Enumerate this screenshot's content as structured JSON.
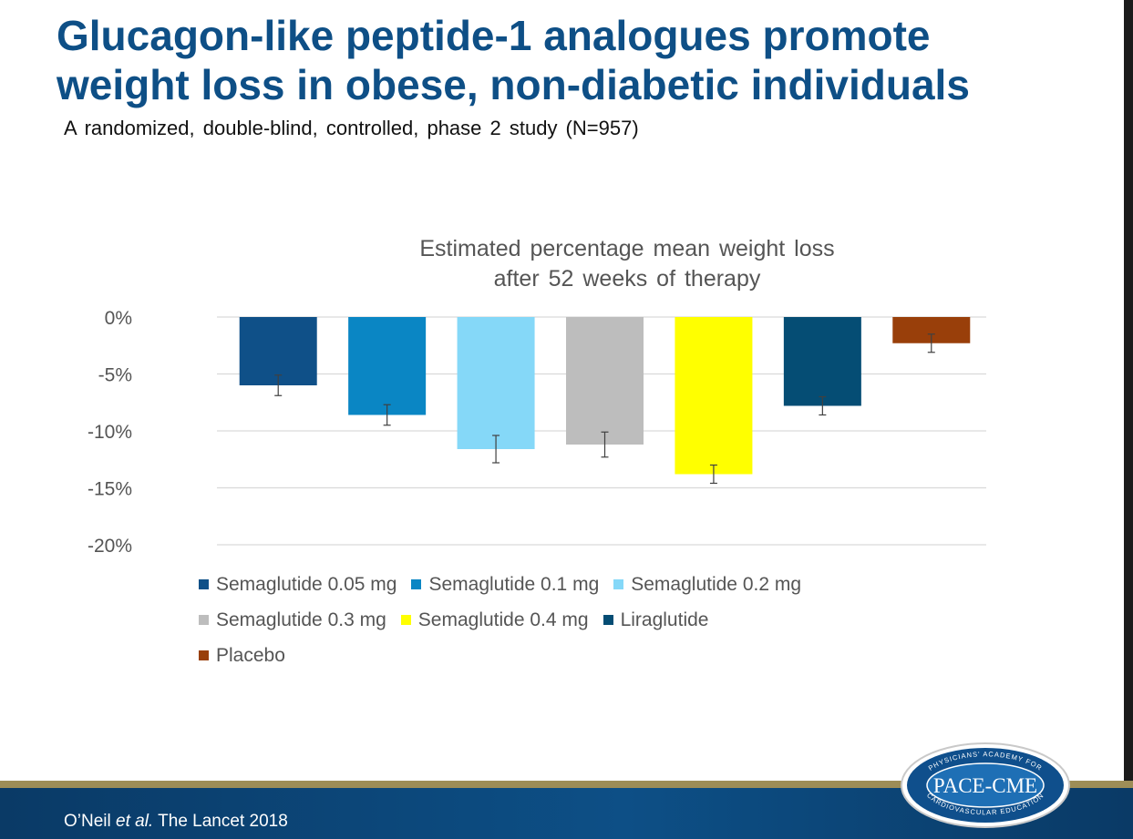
{
  "slide": {
    "title_line1": "Glucagon-like peptide-1 analogues promote",
    "title_line2": "weight loss in obese, non-diabetic individuals",
    "subtitle": "A randomized, double-blind, controlled, phase 2 study (N=957)"
  },
  "chart_data": {
    "type": "bar",
    "title_line1": "Estimated percentage mean weight loss",
    "title_line2": "after 52 weeks of therapy",
    "ylim": [
      -20,
      0
    ],
    "yticks": [
      0,
      -5,
      -10,
      -15,
      -20
    ],
    "ytick_labels": [
      "0%",
      "-5%",
      "-10%",
      "-15%",
      "-20%"
    ],
    "grid": true,
    "legend_position": "bottom",
    "series": [
      {
        "name": "Semaglutide 0.05 mg",
        "value": -6.0,
        "err_low": -6.9,
        "err_high": -5.1,
        "color": "#0f5088"
      },
      {
        "name": "Semaglutide 0.1 mg",
        "value": -8.6,
        "err_low": -9.5,
        "err_high": -7.7,
        "color": "#0a86c4"
      },
      {
        "name": "Semaglutide 0.2 mg",
        "value": -11.6,
        "err_low": -12.8,
        "err_high": -10.4,
        "color": "#85d8f8"
      },
      {
        "name": "Semaglutide 0.3 mg",
        "value": -11.2,
        "err_low": -12.3,
        "err_high": -10.1,
        "color": "#bdbdbd"
      },
      {
        "name": "Semaglutide 0.4 mg",
        "value": -13.8,
        "err_low": -14.6,
        "err_high": -13.0,
        "color": "#ffff00"
      },
      {
        "name": "Liraglutide",
        "value": -7.8,
        "err_low": -8.6,
        "err_high": -7.0,
        "color": "#054d74"
      },
      {
        "name": "Placebo",
        "value": -2.3,
        "err_low": -3.1,
        "err_high": -1.5,
        "color": "#993f0a"
      }
    ]
  },
  "footer": {
    "citation_author": "O’Neil ",
    "citation_etal": "et al.",
    "citation_rest": " The Lancet 2018"
  },
  "logo": {
    "main_text": "PACE-CME",
    "ring_top": "PHYSICIANS' ACADEMY FOR",
    "ring_bottom": "CARDIOVASCULAR EDUCATION"
  }
}
